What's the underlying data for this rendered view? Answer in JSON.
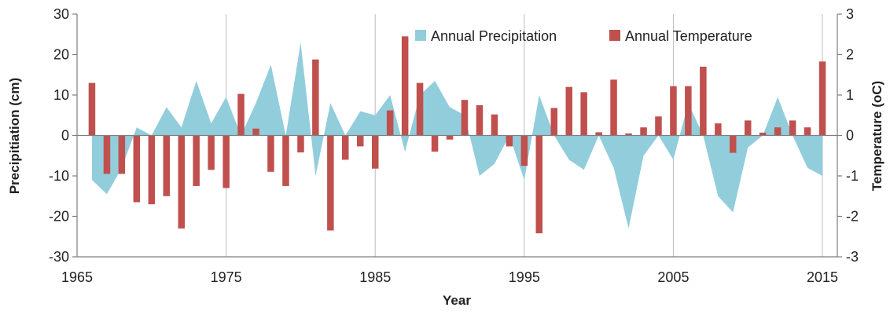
{
  "chart_data": {
    "type": "bar",
    "xlabel": "Year",
    "ylabel_left": "Precipitiation (cm)",
    "ylabel_right": "Temperature (oC)",
    "xlim": [
      1965,
      2016
    ],
    "xticks": [
      "1965",
      "1975",
      "1985",
      "1995",
      "2005",
      "2015"
    ],
    "ylim_left": [
      -30,
      30
    ],
    "yticks_left": [
      "30",
      "20",
      "10",
      "0",
      "-10",
      "-20",
      "-30"
    ],
    "ylim_right": [
      -3,
      3
    ],
    "yticks_right": [
      "3",
      "2",
      "1",
      "0",
      "-1",
      "-2",
      "-3"
    ],
    "grid": "vertical",
    "legend_position": "top-right",
    "colors": {
      "precipitation": "#92cddc",
      "temperature": "#c0504d"
    },
    "series": [
      {
        "name": "Annual Precipitation",
        "type": "area",
        "axis": "left",
        "x": [
          1966,
          1967,
          1968,
          1969,
          1970,
          1971,
          1972,
          1973,
          1974,
          1975,
          1976,
          1977,
          1978,
          1979,
          1980,
          1981,
          1982,
          1983,
          1984,
          1985,
          1986,
          1987,
          1988,
          1989,
          1990,
          1991,
          1992,
          1993,
          1994,
          1995,
          1996,
          1997,
          1998,
          1999,
          2000,
          2001,
          2002,
          2003,
          2004,
          2005,
          2006,
          2007,
          2008,
          2009,
          2010,
          2011,
          2012,
          2013,
          2014,
          2015
        ],
        "values": [
          -11,
          -14.5,
          -8,
          2,
          0,
          7,
          2,
          13.5,
          3,
          9.5,
          0,
          8,
          17.5,
          0,
          23,
          -10,
          8,
          0,
          6,
          5,
          10,
          -4,
          10,
          13.5,
          7,
          5,
          -10,
          -7,
          0,
          -11,
          10,
          0,
          -6,
          -8.5,
          0,
          -8,
          -23,
          -5,
          0,
          -6,
          8,
          0,
          -15,
          -19,
          -3,
          0,
          9.5,
          0,
          -8,
          -10
        ]
      },
      {
        "name": "Annual Temperature",
        "type": "bar",
        "axis": "right",
        "x": [
          1966,
          1967,
          1968,
          1969,
          1970,
          1971,
          1972,
          1973,
          1974,
          1975,
          1976,
          1977,
          1978,
          1979,
          1980,
          1981,
          1982,
          1983,
          1984,
          1985,
          1986,
          1987,
          1988,
          1989,
          1990,
          1991,
          1992,
          1993,
          1994,
          1995,
          1996,
          1997,
          1998,
          1999,
          2000,
          2001,
          2002,
          2003,
          2004,
          2005,
          2006,
          2007,
          2008,
          2009,
          2010,
          2011,
          2012,
          2013,
          2014,
          2015
        ],
        "values": [
          1.3,
          -0.95,
          -0.95,
          -1.65,
          -1.7,
          -1.5,
          -2.3,
          -1.25,
          -0.85,
          -1.3,
          1.03,
          0.17,
          -0.9,
          -1.25,
          -0.42,
          1.88,
          -2.35,
          -0.6,
          -0.27,
          -0.82,
          0.62,
          2.45,
          1.3,
          -0.4,
          -0.1,
          0.88,
          0.75,
          0.52,
          -0.27,
          -0.75,
          -2.42,
          0.68,
          1.2,
          1.07,
          0.08,
          1.38,
          0.05,
          0.2,
          0.47,
          1.22,
          1.22,
          1.7,
          0.3,
          -0.43,
          0.37,
          0.07,
          0.2,
          0.37,
          0.2,
          1.83
        ]
      }
    ]
  }
}
